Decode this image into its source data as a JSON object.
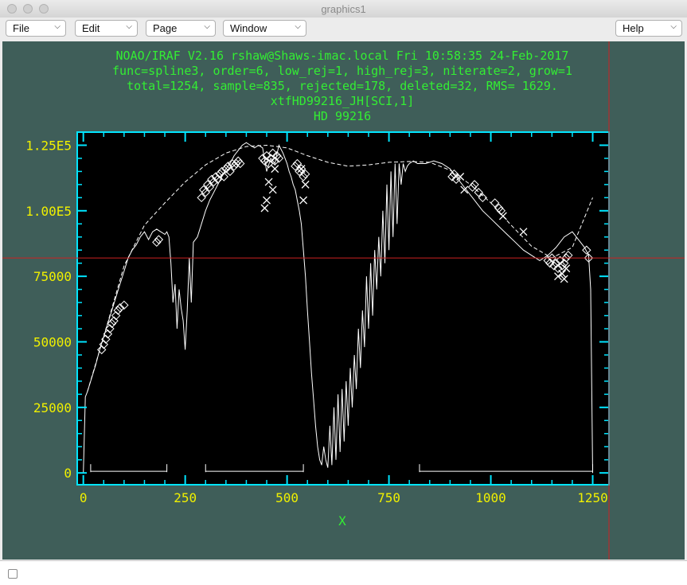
{
  "window": {
    "title": "graphics1"
  },
  "menus": [
    {
      "label": "File"
    },
    {
      "label": "Edit"
    },
    {
      "label": "Page"
    },
    {
      "label": "Window"
    }
  ],
  "help": {
    "label": "Help"
  },
  "header": {
    "line1": "NOAO/IRAF V2.16 rshaw@Shaws-imac.local Fri 10:58:35 24-Feb-2017",
    "line2": "func=spline3, order=6, low_rej=1, high_rej=3, niterate=2, grow=1",
    "line3": "total=1254, sample=835, rejected=178, deleted=32, RMS=  1629.",
    "line4": "xtfHD99216_JH[SCI,1]",
    "line5": "HD 99216"
  },
  "colors": {
    "background": "#3f5e59",
    "plot_bg": "#000000",
    "axes": "#00e5ff",
    "header_text": "#33ee33",
    "tick_labels": "#f0f000",
    "data": "#ffffff",
    "cursor": "#cc2222"
  },
  "chart_data": {
    "type": "line",
    "xlabel": "X",
    "ylabel": "",
    "xlim": [
      -15,
      1290
    ],
    "ylim": [
      -4500,
      130000
    ],
    "x_ticks": [
      0,
      250,
      500,
      750,
      1000,
      1250
    ],
    "x_tick_labels": [
      "0",
      "250",
      "500",
      "750",
      "1000",
      "1250"
    ],
    "y_ticks": [
      0,
      25000,
      50000,
      75000,
      100000,
      125000
    ],
    "y_tick_labels": [
      "0",
      "25000",
      "50000",
      "75000",
      "1.00E5",
      "1.25E5"
    ],
    "series": [
      {
        "style": "solid",
        "x": [
          0,
          5,
          10,
          20,
          30,
          40,
          50,
          60,
          70,
          80,
          90,
          100,
          110,
          120,
          130,
          140,
          150,
          160,
          170,
          180,
          190,
          200,
          205,
          210,
          215,
          220,
          225,
          230,
          235,
          240,
          245,
          250,
          255,
          260,
          265,
          270,
          280,
          290,
          300,
          310,
          320,
          330,
          340,
          350,
          360,
          370,
          380,
          390,
          400,
          410,
          420,
          430,
          440,
          450,
          460,
          470,
          480,
          490,
          500,
          505,
          510,
          515,
          520,
          525,
          530,
          535,
          540,
          545,
          550,
          555,
          560,
          565,
          570,
          575,
          580,
          585,
          590,
          595,
          600,
          605,
          610,
          615,
          620,
          625,
          630,
          635,
          640,
          645,
          650,
          655,
          660,
          665,
          670,
          675,
          680,
          685,
          690,
          695,
          700,
          705,
          710,
          715,
          720,
          725,
          730,
          735,
          740,
          745,
          750,
          755,
          760,
          765,
          770,
          775,
          780,
          785,
          790,
          795,
          800,
          810,
          820,
          840,
          860,
          880,
          900,
          920,
          940,
          960,
          980,
          1000,
          1020,
          1040,
          1060,
          1080,
          1100,
          1120,
          1140,
          1160,
          1180,
          1200,
          1210,
          1220,
          1230,
          1240,
          1245,
          1250
        ],
        "y": [
          0,
          29000,
          31000,
          36000,
          41000,
          47000,
          52000,
          57000,
          62000,
          67000,
          72000,
          77000,
          82000,
          85000,
          87000,
          90000,
          92000,
          89000,
          92000,
          93000,
          92000,
          91000,
          92000,
          90000,
          80000,
          65000,
          72000,
          55000,
          70000,
          63000,
          58000,
          47000,
          62000,
          82000,
          65000,
          88000,
          90000,
          95000,
          100000,
          104000,
          107000,
          110000,
          113000,
          116000,
          118000,
          121000,
          123000,
          125000,
          126000,
          125000,
          124000,
          125000,
          124000,
          115000,
          120000,
          118000,
          125000,
          122000,
          118000,
          115000,
          113000,
          110000,
          108000,
          104000,
          100000,
          95000,
          85000,
          75000,
          62000,
          50000,
          38000,
          28000,
          18000,
          10000,
          5000,
          3000,
          10000,
          5000,
          2000,
          18000,
          3000,
          25000,
          5000,
          30000,
          8000,
          32000,
          12000,
          35000,
          18000,
          40000,
          25000,
          45000,
          32000,
          55000,
          40000,
          62000,
          48000,
          75000,
          55000,
          80000,
          60000,
          85000,
          70000,
          90000,
          75000,
          100000,
          80000,
          110000,
          85000,
          115000,
          90000,
          118000,
          95000,
          118000,
          110000,
          118000,
          115000,
          117000,
          118000,
          119000,
          118000,
          118000,
          119000,
          118000,
          116000,
          112000,
          108000,
          104000,
          100000,
          97000,
          94000,
          91000,
          88000,
          85000,
          83000,
          81000,
          83000,
          86000,
          90000,
          92000,
          90000,
          88000,
          86000,
          83000,
          70000,
          0
        ]
      },
      {
        "style": "dashed",
        "x": [
          10,
          50,
          100,
          150,
          200,
          250,
          300,
          350,
          400,
          450,
          500,
          550,
          600,
          650,
          700,
          750,
          800,
          850,
          900,
          950,
          1000,
          1050,
          1100,
          1150,
          1200,
          1250
        ],
        "y": [
          31000,
          52000,
          79000,
          94500,
          103000,
          111000,
          117500,
          122000,
          124500,
          125000,
          124000,
          121000,
          118500,
          117000,
          117500,
          118500,
          118800,
          118500,
          115500,
          110000,
          103000,
          94500,
          86500,
          82000,
          86000,
          105000
        ]
      }
    ],
    "rejected_x": [
      10,
      15,
      20,
      90,
      100,
      110,
      120,
      130,
      140,
      150,
      160,
      170,
      180,
      190,
      200,
      210,
      220,
      230,
      240,
      250,
      260,
      270,
      280,
      290,
      300,
      310,
      320,
      330,
      340,
      350,
      360,
      370,
      380,
      390,
      400,
      410,
      420,
      430,
      440,
      450,
      460,
      470,
      480,
      490,
      500,
      510,
      520,
      530,
      540,
      550,
      560,
      570,
      580,
      590,
      600,
      610,
      620,
      630,
      640,
      650,
      660,
      670,
      680,
      690,
      700,
      710,
      720,
      730,
      740,
      750,
      760,
      770,
      780,
      790,
      800,
      810,
      820,
      830,
      840,
      850,
      860,
      870,
      880,
      890,
      900,
      910,
      920,
      930,
      940,
      950,
      960,
      970,
      980,
      990,
      1000,
      1010,
      1020,
      1030,
      1040,
      1050,
      1060,
      1070,
      1080,
      1090,
      1100,
      1110,
      1120,
      1130,
      1140,
      1150,
      1160,
      1170,
      1180,
      1190,
      1200,
      1210,
      1220,
      1230,
      1240,
      1250
    ],
    "rejected_y": [],
    "rejected_points": {
      "x": [
        445,
        450,
        455,
        465,
        470,
        540,
        545,
        535,
        925,
        935,
        1030,
        1080,
        1175,
        1180,
        1165,
        1185
      ],
      "y": [
        101000,
        104000,
        111000,
        108000,
        116000,
        104000,
        110000,
        116000,
        113000,
        108000,
        98000,
        92000,
        76000,
        74000,
        75000,
        78000
      ]
    },
    "diamond_points": {
      "x": [
        45,
        50,
        55,
        60,
        65,
        70,
        75,
        80,
        85,
        90,
        100,
        180,
        185,
        290,
        295,
        300,
        305,
        310,
        315,
        320,
        325,
        330,
        335,
        340,
        345,
        350,
        355,
        360,
        365,
        370,
        375,
        380,
        385,
        440,
        445,
        450,
        455,
        460,
        465,
        470,
        475,
        480,
        520,
        525,
        530,
        535,
        540,
        545,
        905,
        910,
        915,
        955,
        960,
        970,
        980,
        1010,
        1020,
        1025,
        1140,
        1145,
        1150,
        1155,
        1160,
        1165,
        1170,
        1175,
        1180,
        1185,
        1190,
        1235,
        1240
      ],
      "y": [
        47000,
        49000,
        51000,
        53000,
        55000,
        57000,
        58000,
        60000,
        62000,
        63000,
        64000,
        88000,
        89000,
        105000,
        108000,
        107000,
        110000,
        109000,
        112000,
        111000,
        113000,
        112000,
        114000,
        115000,
        113000,
        116000,
        117000,
        115000,
        118000,
        117000,
        118000,
        119000,
        118000,
        120000,
        119000,
        121000,
        118000,
        120000,
        122000,
        119000,
        121000,
        120000,
        117000,
        118000,
        115000,
        116000,
        113000,
        114000,
        113000,
        114000,
        112000,
        109000,
        110000,
        107000,
        105000,
        103000,
        101000,
        100000,
        81000,
        80000,
        82000,
        79000,
        80000,
        78000,
        81000,
        79000,
        80000,
        82000,
        83000,
        85000,
        82000
      ]
    },
    "sample_ranges": [
      [
        18,
        205
      ],
      [
        300,
        540
      ],
      [
        825,
        1250
      ]
    ],
    "sample_range_y": 0,
    "cursor": {
      "x": 1290,
      "y": 82000
    }
  }
}
